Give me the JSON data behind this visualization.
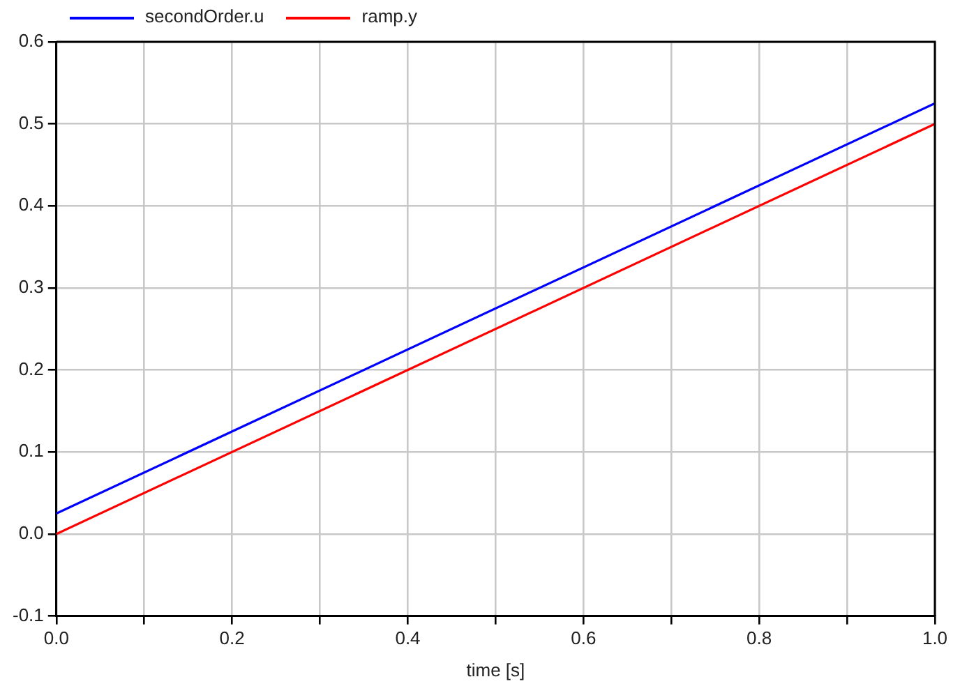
{
  "chart_data": {
    "type": "line",
    "xlabel": "time [s]",
    "x": [
      0,
      1
    ],
    "series": [
      {
        "name": "secondOrder.u",
        "color": "#0000ff",
        "values": [
          0.025,
          0.525
        ]
      },
      {
        "name": "ramp.y",
        "color": "#ff0000",
        "values": [
          0,
          0.5
        ]
      }
    ],
    "xlim": [
      0,
      1
    ],
    "xticks": [
      {
        "value": 0,
        "label": "0.0"
      },
      {
        "value": 0.1,
        "label": null
      },
      {
        "value": 0.2,
        "label": "0.2"
      },
      {
        "value": 0.3,
        "label": null
      },
      {
        "value": 0.4,
        "label": "0.4"
      },
      {
        "value": 0.5,
        "label": null
      },
      {
        "value": 0.6,
        "label": "0.6"
      },
      {
        "value": 0.7,
        "label": null
      },
      {
        "value": 0.8,
        "label": "0.8"
      },
      {
        "value": 0.9,
        "label": null
      },
      {
        "value": 1,
        "label": "1.0"
      }
    ],
    "ylim": [
      -0.1,
      0.6
    ],
    "yticks": [
      {
        "value": -0.1,
        "label": "-0.1"
      },
      {
        "value": 0,
        "label": "0.0"
      },
      {
        "value": 0.1,
        "label": "0.1"
      },
      {
        "value": 0.2,
        "label": "0.2"
      },
      {
        "value": 0.3,
        "label": "0.3"
      },
      {
        "value": 0.4,
        "label": "0.4"
      },
      {
        "value": 0.5,
        "label": "0.5"
      },
      {
        "value": 0.6,
        "label": "0.6"
      }
    ],
    "grid": true,
    "legend": "top left",
    "marker": "none",
    "line_style": "solid"
  }
}
